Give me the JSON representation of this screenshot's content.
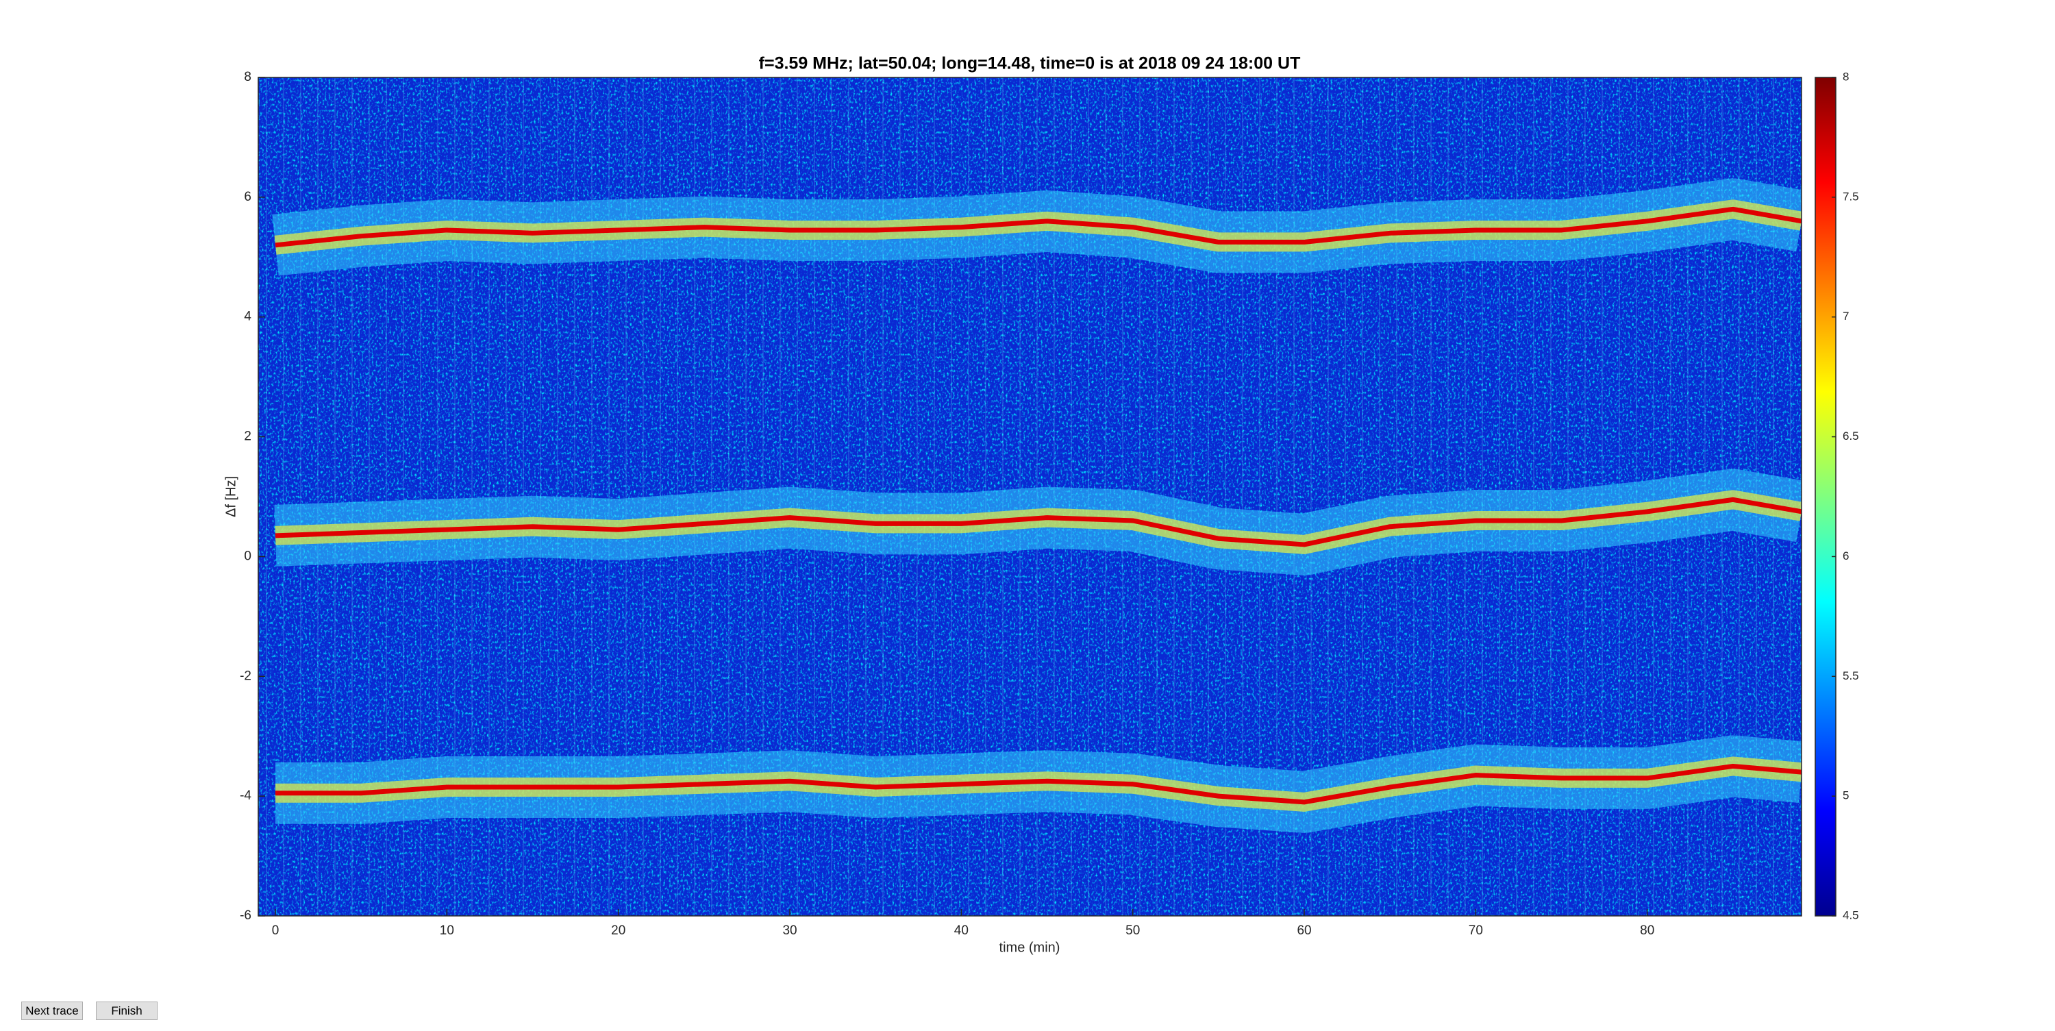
{
  "chart_data": {
    "type": "spectrogram",
    "title": "f=3.59 MHz;  lat=50.04; long=14.48, time=0 is at 2018 09 24 18:00 UT",
    "xlabel": "time (min)",
    "ylabel": "Δf [Hz]",
    "x": [
      0,
      5,
      10,
      15,
      20,
      25,
      30,
      35,
      40,
      45,
      50,
      55,
      60,
      65,
      70,
      75,
      80,
      85,
      89
    ],
    "series": [
      {
        "color": "#e00000",
        "values": [
          5.2,
          5.35,
          5.45,
          5.4,
          5.45,
          5.5,
          5.45,
          5.45,
          5.5,
          5.6,
          5.5,
          5.25,
          5.25,
          5.4,
          5.45,
          5.45,
          5.6,
          5.8,
          5.6
        ]
      },
      {
        "color": "#e00000",
        "values": [
          0.35,
          0.4,
          0.45,
          0.5,
          0.45,
          0.55,
          0.65,
          0.55,
          0.55,
          0.65,
          0.6,
          0.3,
          0.2,
          0.5,
          0.6,
          0.6,
          0.75,
          0.95,
          0.75
        ]
      },
      {
        "color": "#e00000",
        "values": [
          -3.95,
          -3.95,
          -3.85,
          -3.85,
          -3.85,
          -3.8,
          -3.75,
          -3.85,
          -3.8,
          -3.75,
          -3.8,
          -4.0,
          -4.1,
          -3.85,
          -3.65,
          -3.7,
          -3.7,
          -3.5,
          -3.6
        ]
      }
    ],
    "xlim": [
      -1,
      89
    ],
    "xticks": [
      0,
      10,
      20,
      30,
      40,
      50,
      60,
      70,
      80
    ],
    "ylim": [
      -6,
      8
    ],
    "yticks": [
      -6,
      -4,
      -2,
      0,
      2,
      4,
      6,
      8
    ],
    "clim": [
      4.5,
      8
    ],
    "cticks": [
      4.5,
      5,
      5.5,
      6,
      6.5,
      7,
      7.5,
      8
    ],
    "colormap": "jet"
  },
  "buttons": [
    "Next trace",
    "Finish"
  ]
}
